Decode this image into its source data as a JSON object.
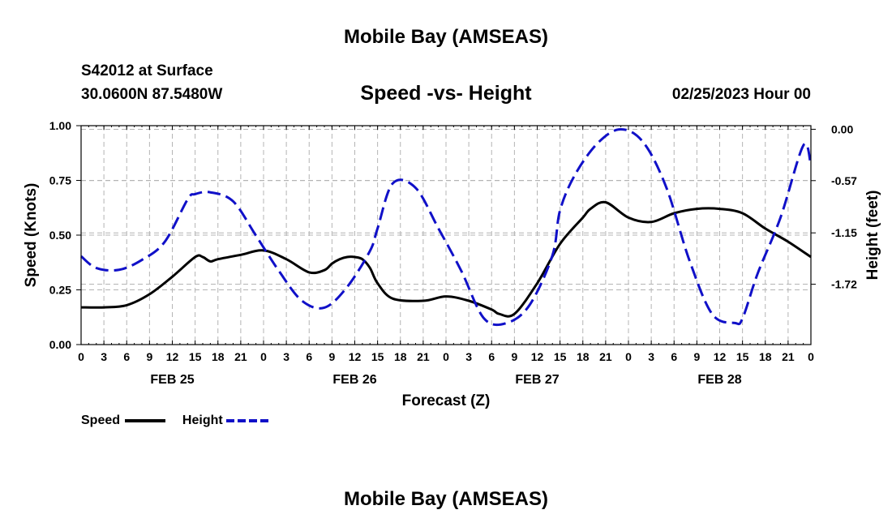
{
  "header": {
    "title": "Mobile Bay (AMSEAS)",
    "station": "S42012 at Surface",
    "coords": "30.0600N  87.5480W",
    "plot_title": "Speed -vs- Height",
    "datetime": "02/25/2023 Hour 00"
  },
  "footer": {
    "title": "Mobile Bay (AMSEAS)"
  },
  "legend": {
    "speed_label": "Speed",
    "height_label": "Height"
  },
  "colors": {
    "speed": "#000000",
    "height": "#1010c8",
    "grid": "#b4b4b4"
  },
  "chart_data": {
    "type": "line",
    "title": "Speed -vs- Height",
    "xlabel": "Forecast (Z)",
    "ylabel": "Speed (Knots)",
    "y2label": "Height (feet)",
    "x_range_hours": [
      0,
      96
    ],
    "x_tick_labels": [
      "0",
      "3",
      "6",
      "9",
      "12",
      "15",
      "18",
      "21",
      "0",
      "3",
      "6",
      "9",
      "12",
      "15",
      "18",
      "21",
      "0",
      "3",
      "6",
      "9",
      "12",
      "15",
      "18",
      "21",
      "0",
      "3",
      "6",
      "9",
      "12",
      "15",
      "18",
      "21",
      "0"
    ],
    "date_labels": [
      {
        "label": "FEB 25",
        "hour": 12
      },
      {
        "label": "FEB 26",
        "hour": 36
      },
      {
        "label": "FEB 27",
        "hour": 60
      },
      {
        "label": "FEB 28",
        "hour": 84
      }
    ],
    "ylim": [
      0,
      1.0
    ],
    "y_ticks": [
      "0.00",
      "0.25",
      "0.50",
      "0.75",
      "1.00"
    ],
    "y2lim": [
      -2.39,
      0.04
    ],
    "y2_ticks": [
      "0.00",
      "-0.57",
      "-1.15",
      "-1.72"
    ],
    "grid": true,
    "series": [
      {
        "name": "Speed",
        "axis": "left",
        "style": "solid",
        "x": [
          0,
          3,
          6,
          9,
          12,
          15,
          16,
          17,
          18,
          21,
          24,
          27,
          30,
          32,
          33,
          34,
          35,
          36,
          37,
          38,
          39,
          41,
          45,
          48,
          51,
          54,
          55,
          57,
          60,
          63,
          66,
          67,
          69,
          72,
          75,
          78,
          81,
          84,
          87,
          90,
          93,
          96
        ],
        "y": [
          0.17,
          0.17,
          0.18,
          0.23,
          0.31,
          0.4,
          0.4,
          0.38,
          0.39,
          0.41,
          0.43,
          0.39,
          0.33,
          0.34,
          0.37,
          0.39,
          0.4,
          0.4,
          0.39,
          0.35,
          0.28,
          0.21,
          0.2,
          0.22,
          0.2,
          0.16,
          0.14,
          0.14,
          0.28,
          0.46,
          0.58,
          0.62,
          0.65,
          0.58,
          0.56,
          0.6,
          0.62,
          0.62,
          0.6,
          0.53,
          0.47,
          0.4
        ]
      },
      {
        "name": "Height",
        "axis": "right",
        "style": "dashed",
        "x": [
          0,
          2,
          5,
          8,
          11,
          14,
          15,
          17,
          20,
          23,
          26,
          29,
          32,
          35,
          38,
          39,
          41,
          44,
          47,
          50,
          53,
          56,
          59,
          62,
          63,
          65,
          68,
          71,
          74,
          77,
          80,
          83,
          86,
          87,
          89,
          92,
          95,
          96
        ],
        "y": [
          -1.41,
          -1.54,
          -1.56,
          -1.45,
          -1.25,
          -0.78,
          -0.72,
          -0.7,
          -0.8,
          -1.18,
          -1.57,
          -1.9,
          -1.98,
          -1.75,
          -1.35,
          -1.1,
          -0.6,
          -0.65,
          -1.1,
          -1.57,
          -2.1,
          -2.15,
          -1.95,
          -1.4,
          -0.9,
          -0.5,
          -0.15,
          0.0,
          -0.15,
          -0.65,
          -1.45,
          -2.05,
          -2.15,
          -2.1,
          -1.6,
          -0.98,
          -0.18,
          -0.4
        ]
      }
    ]
  }
}
